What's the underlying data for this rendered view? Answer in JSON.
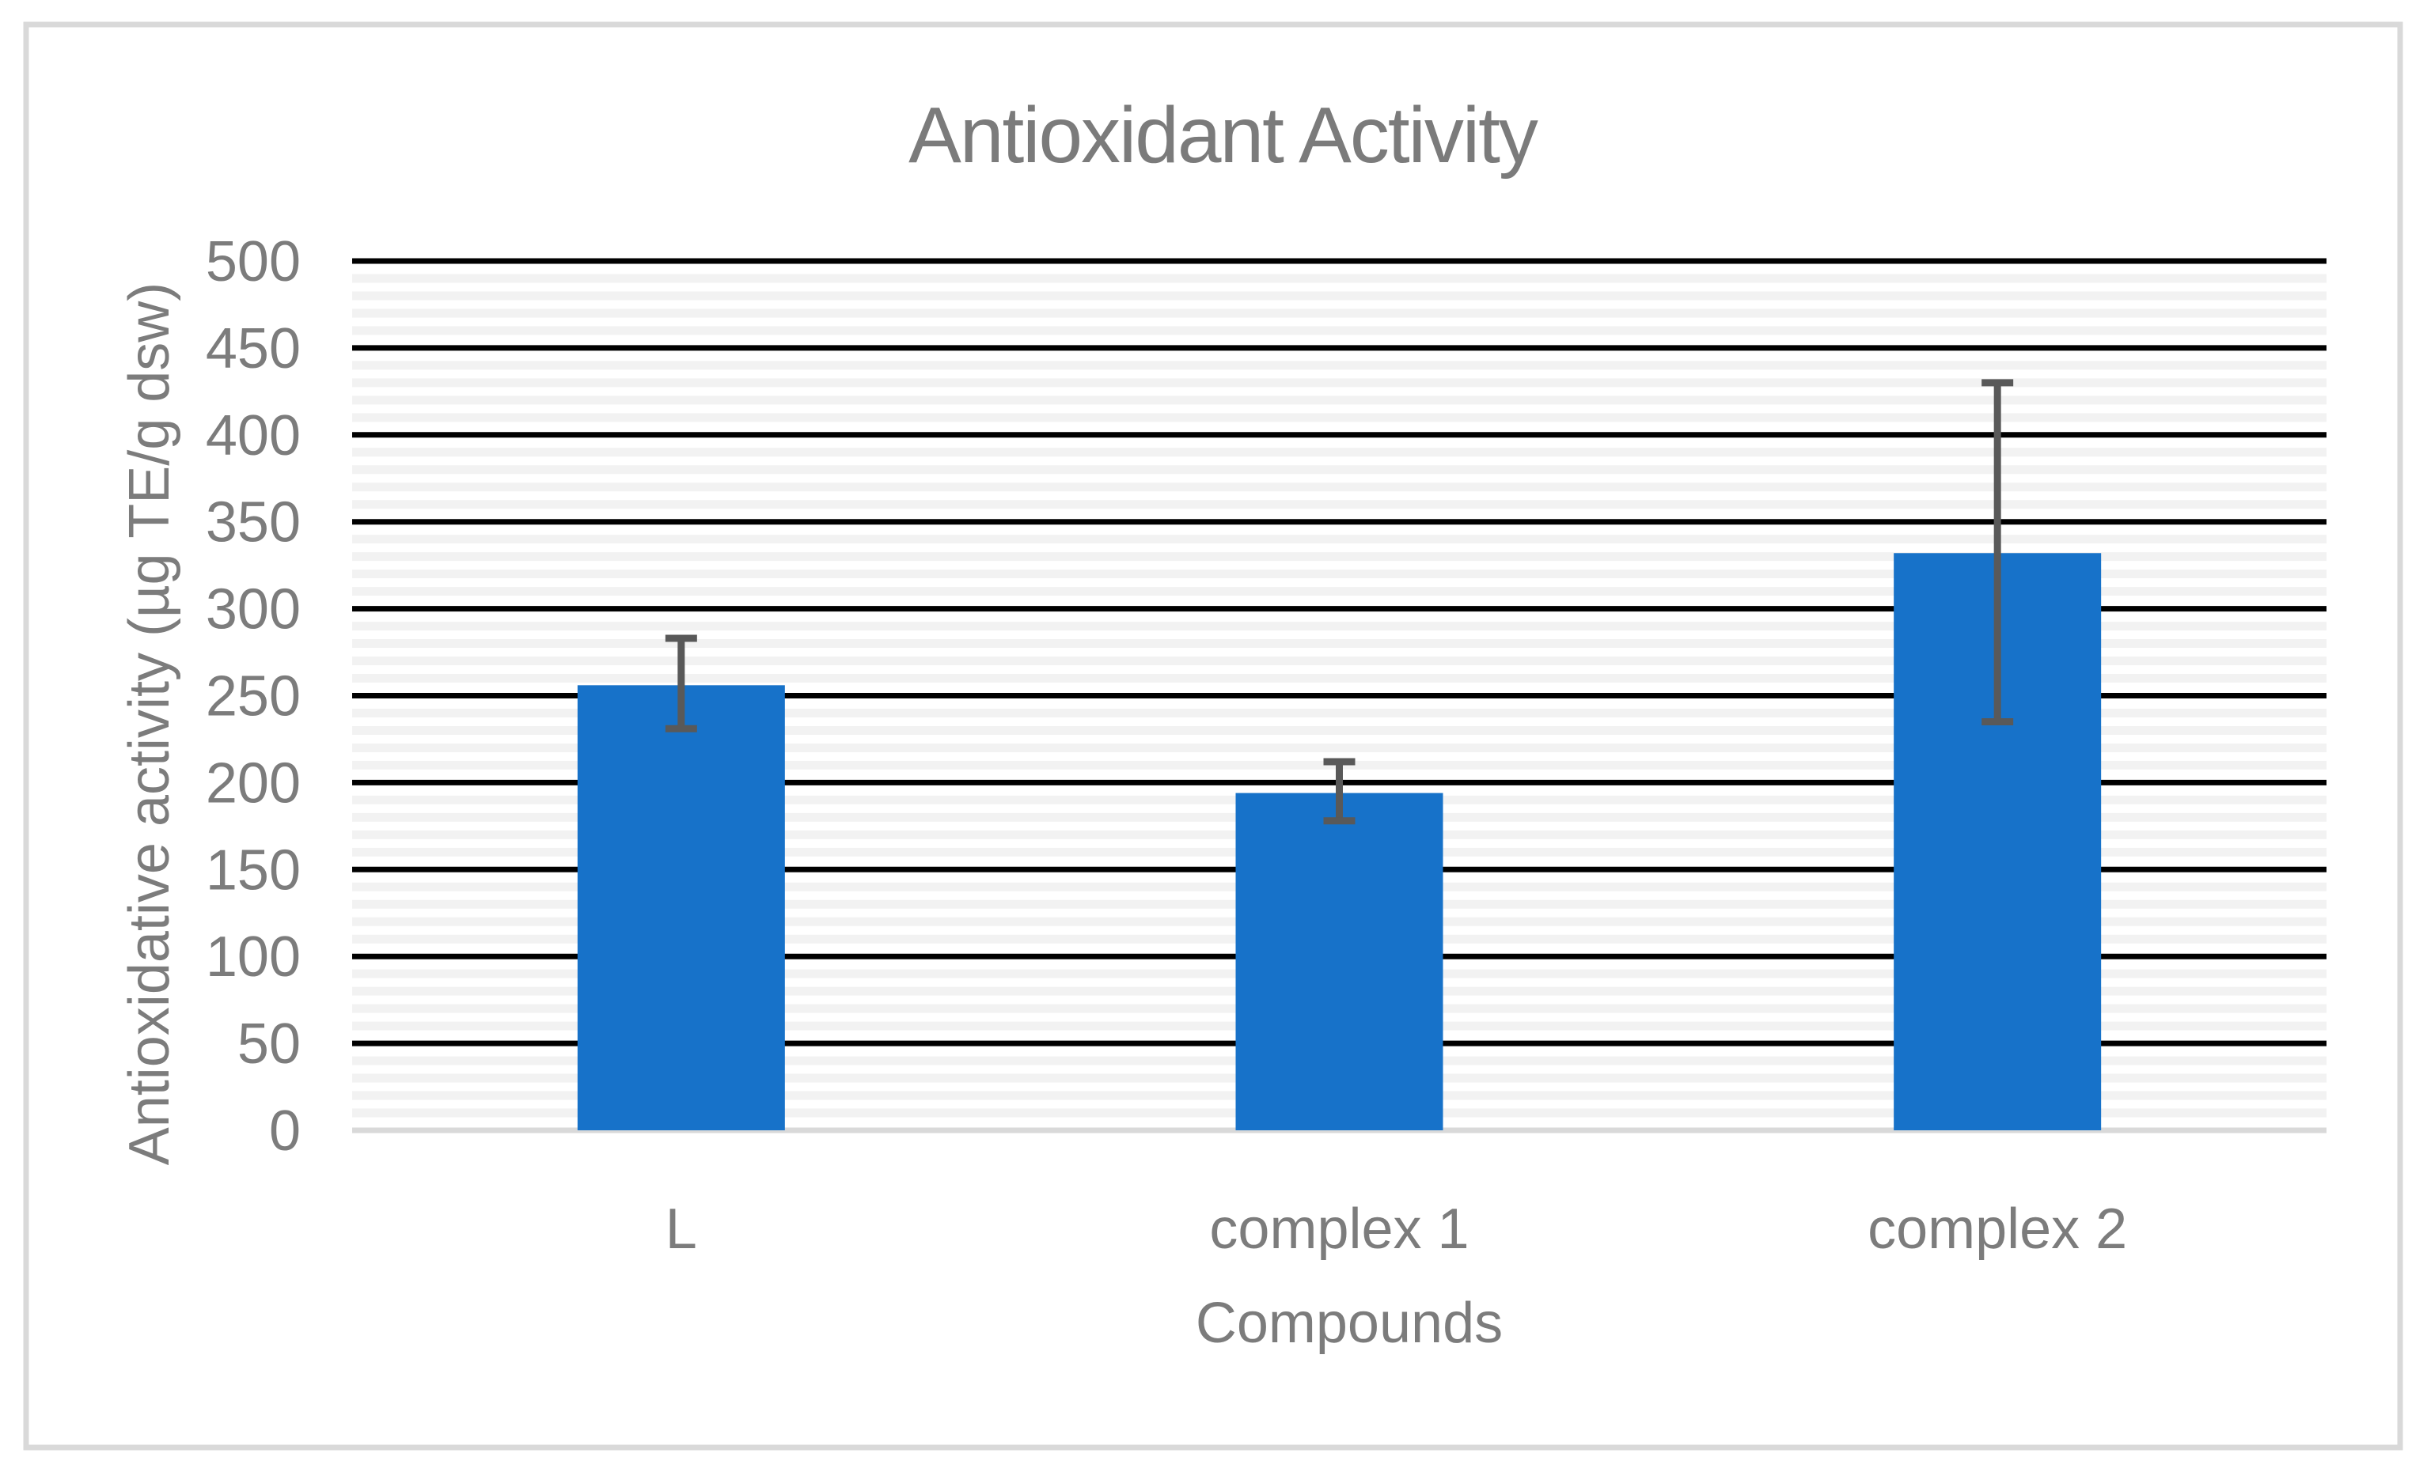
{
  "chart_data": {
    "type": "bar",
    "title": "Antioxidant Activity",
    "xlabel": "Compounds",
    "ylabel": "Antioxidative activity (µg TE/g dsw)",
    "categories": [
      "L",
      "complex 1",
      "complex 2"
    ],
    "values": [
      256,
      194,
      332
    ],
    "error_bars": [
      {
        "low": 231,
        "high": 283
      },
      {
        "low": 178,
        "high": 212
      },
      {
        "low": 235,
        "high": 430
      }
    ],
    "ylim": [
      0,
      500
    ],
    "y_major_step": 50,
    "y_minor_step": 10,
    "y_tick_labels": [
      "0",
      "50",
      "100",
      "150",
      "200",
      "250",
      "300",
      "350",
      "400",
      "450",
      "500"
    ],
    "grid": "major-black-with-light-minor-bands",
    "legend_position": "none",
    "colors": {
      "bar_fill": "#1772C9",
      "error_bar": "#595959",
      "major_gridline": "#000000",
      "minor_gridline": "#f2f2f2",
      "axis_line": "#d9d9d9",
      "text": "#7c7c7c",
      "title_text": "#7b7b7b",
      "chart_border": "#d9d9d9",
      "background": "#ffffff"
    }
  }
}
